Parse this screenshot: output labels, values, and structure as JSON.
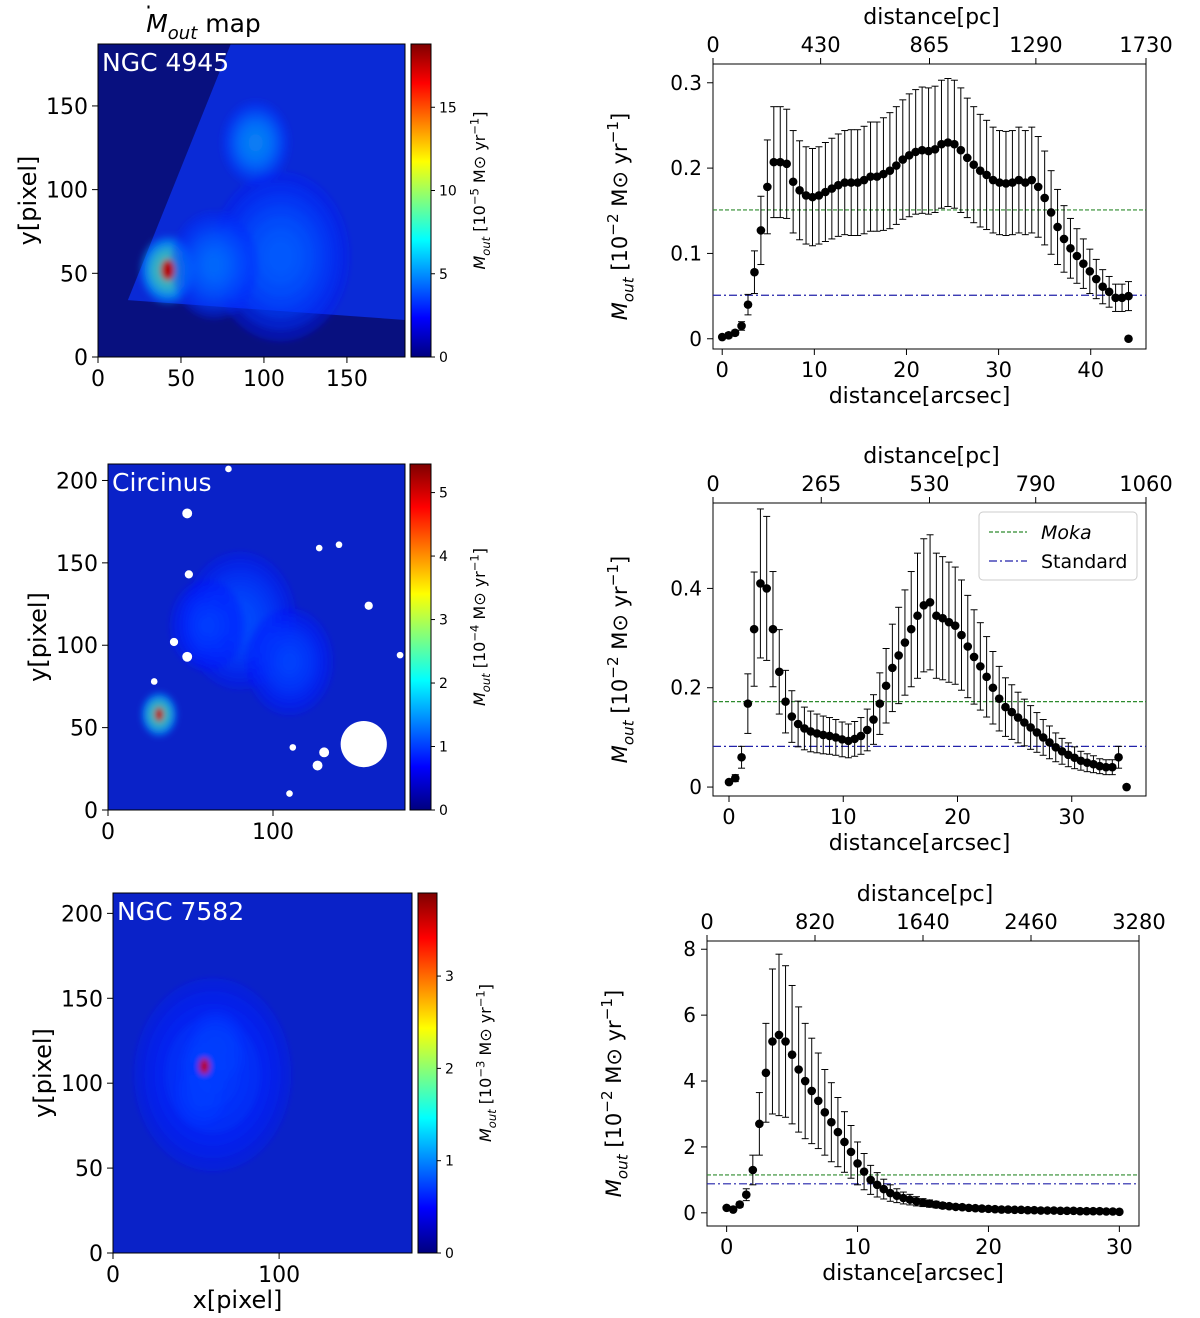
{
  "colors": {
    "map_background": "#0b1b9e",
    "profile_points": "#000000",
    "moka_line": "#2e8b2e",
    "standard_line": "#2222aa",
    "colormap": [
      "#00007f",
      "#0000ff",
      "#007fff",
      "#00ffff",
      "#7fff7f",
      "#ffff00",
      "#ff7f00",
      "#ff0000",
      "#7f0000"
    ]
  },
  "chart_data": [
    {
      "type": "heatmap",
      "panel": "map",
      "title_main": "M",
      "title_sub": "out",
      "title_rest": "map",
      "galaxy_label": "NGC 4945",
      "xlabel": "",
      "ylabel": "y[pixel]",
      "x_ticks": [
        "0",
        "50",
        "100",
        "150"
      ],
      "x_tick_values": [
        0,
        50,
        100,
        150
      ],
      "y_ticks": [
        "0",
        "50",
        "100",
        "150"
      ],
      "y_tick_values": [
        0,
        50,
        100,
        150
      ],
      "xlim": [
        0,
        185
      ],
      "ylim": [
        0,
        187
      ],
      "colorbar": {
        "label_prefix": "M",
        "label_sub": "out",
        "label_unit": "[10",
        "label_exp": "−5",
        "label_tail": "M⊙ yr",
        "label_tail_exp": "−1",
        "label_close": "]",
        "ticks": [
          "0",
          "5",
          "10",
          "15"
        ],
        "tick_values": [
          0,
          5,
          10,
          15
        ],
        "range": [
          0,
          18.8
        ]
      },
      "blobs": [
        {
          "x": 42,
          "y": 52,
          "amp": 1.0,
          "r": 9
        },
        {
          "x": 95,
          "y": 128,
          "amp": 0.45,
          "r": 11
        },
        {
          "x": 110,
          "y": 60,
          "amp": 0.3,
          "r": 22
        },
        {
          "x": 70,
          "y": 55,
          "amp": 0.35,
          "r": 14
        }
      ]
    },
    {
      "type": "scatter",
      "panel": "profile",
      "top_axis_label": "distance[pc]",
      "top_ticks": [
        "0",
        "430",
        "865",
        "1290",
        "1730"
      ],
      "top_tick_values": [
        0,
        430,
        865,
        1290,
        1730
      ],
      "top_lim": [
        0,
        1730
      ],
      "xlabel": "distance[arcsec]",
      "ylabel_prefix": "M",
      "ylabel_sub": "out",
      "ylabel_unit": "[10",
      "ylabel_exp": "−2",
      "ylabel_tail": "M⊙ yr",
      "ylabel_tail_exp": "−1",
      "ylabel_close": "]",
      "x_ticks": [
        "0",
        "10",
        "20",
        "30",
        "40"
      ],
      "x_tick_values": [
        0,
        10,
        20,
        30,
        40
      ],
      "y_ticks": [
        "0",
        "0.1",
        "0.2",
        "0.3"
      ],
      "y_tick_values": [
        0,
        0.1,
        0.2,
        0.3
      ],
      "xlim": [
        -1,
        46
      ],
      "ylim": [
        -0.012,
        0.322
      ],
      "moka_value": 0.151,
      "standard_value": 0.051,
      "x": [
        0,
        0.7,
        1.4,
        2.1,
        2.8,
        3.5,
        4.2,
        4.9,
        5.6,
        6.3,
        7,
        7.7,
        8.4,
        9.1,
        9.8,
        10.5,
        11.2,
        11.9,
        12.6,
        13.3,
        14,
        14.7,
        15.4,
        16.1,
        16.8,
        17.5,
        18.2,
        18.9,
        19.6,
        20.3,
        21,
        21.7,
        22.4,
        23.1,
        23.8,
        24.5,
        25.2,
        25.9,
        26.6,
        27.3,
        28,
        28.7,
        29.4,
        30.1,
        30.8,
        31.5,
        32.2,
        32.9,
        33.6,
        34.3,
        35,
        35.7,
        36.4,
        37.1,
        37.8,
        38.5,
        39.2,
        39.9,
        40.6,
        41.3,
        42,
        42.7,
        43.4,
        44.1
      ],
      "y": [
        0.002,
        0.004,
        0.007,
        0.015,
        0.04,
        0.078,
        0.127,
        0.178,
        0.207,
        0.207,
        0.205,
        0.184,
        0.174,
        0.168,
        0.166,
        0.168,
        0.172,
        0.176,
        0.18,
        0.183,
        0.183,
        0.183,
        0.186,
        0.19,
        0.19,
        0.193,
        0.197,
        0.203,
        0.21,
        0.215,
        0.219,
        0.221,
        0.22,
        0.222,
        0.228,
        0.23,
        0.228,
        0.221,
        0.212,
        0.204,
        0.197,
        0.192,
        0.186,
        0.183,
        0.182,
        0.183,
        0.186,
        0.183,
        0.186,
        0.178,
        0.165,
        0.148,
        0.131,
        0.117,
        0.106,
        0.097,
        0.088,
        0.079,
        0.07,
        0.061,
        0.055,
        0.048,
        0.048,
        0.05
      ],
      "err": [
        0.002,
        0.003,
        0.003,
        0.005,
        0.012,
        0.025,
        0.04,
        0.055,
        0.065,
        0.065,
        0.064,
        0.06,
        0.058,
        0.057,
        0.057,
        0.057,
        0.058,
        0.059,
        0.06,
        0.061,
        0.062,
        0.062,
        0.063,
        0.064,
        0.064,
        0.066,
        0.068,
        0.069,
        0.07,
        0.072,
        0.073,
        0.074,
        0.074,
        0.074,
        0.075,
        0.075,
        0.075,
        0.073,
        0.07,
        0.068,
        0.066,
        0.064,
        0.062,
        0.061,
        0.061,
        0.061,
        0.062,
        0.061,
        0.062,
        0.059,
        0.055,
        0.049,
        0.044,
        0.039,
        0.035,
        0.032,
        0.029,
        0.026,
        0.023,
        0.02,
        0.018,
        0.016,
        0.016,
        0.017
      ],
      "last_point": [
        44.1,
        0.0
      ]
    },
    {
      "type": "heatmap",
      "panel": "map",
      "galaxy_label": "Circinus",
      "xlabel": "",
      "ylabel": "y[pixel]",
      "x_ticks": [
        "0",
        "100"
      ],
      "x_tick_values": [
        0,
        100
      ],
      "y_ticks": [
        "0",
        "50",
        "100",
        "150",
        "200"
      ],
      "y_tick_values": [
        0,
        50,
        100,
        150,
        200
      ],
      "xlim": [
        0,
        180
      ],
      "ylim": [
        0,
        210
      ],
      "colorbar": {
        "label_prefix": "M",
        "label_sub": "out",
        "label_unit": "[10",
        "label_exp": "−4",
        "label_tail": "M⊙ yr",
        "label_tail_exp": "−1",
        "label_close": "]",
        "ticks": [
          "0",
          "1",
          "2",
          "3",
          "4",
          "5"
        ],
        "tick_values": [
          0,
          1,
          2,
          3,
          4,
          5
        ],
        "range": [
          0,
          5.45
        ]
      },
      "blobs": [
        {
          "x": 31,
          "y": 58,
          "amp": 1.0,
          "r": 6
        },
        {
          "x": 80,
          "y": 115,
          "amp": 0.25,
          "r": 18
        },
        {
          "x": 110,
          "y": 90,
          "amp": 0.22,
          "r": 14
        },
        {
          "x": 60,
          "y": 112,
          "amp": 0.2,
          "r": 12
        }
      ],
      "masks": [
        {
          "x": 155,
          "y": 40,
          "r": 14
        },
        {
          "x": 131,
          "y": 35,
          "r": 3
        },
        {
          "x": 127,
          "y": 27,
          "r": 3
        },
        {
          "x": 48,
          "y": 180,
          "r": 3
        },
        {
          "x": 40,
          "y": 102,
          "r": 2.5
        },
        {
          "x": 48,
          "y": 93,
          "r": 3
        },
        {
          "x": 49,
          "y": 143,
          "r": 2.5
        },
        {
          "x": 158,
          "y": 124,
          "r": 2.5
        },
        {
          "x": 140,
          "y": 161,
          "r": 2
        },
        {
          "x": 128,
          "y": 159,
          "r": 2
        },
        {
          "x": 112,
          "y": 38,
          "r": 2
        },
        {
          "x": 110,
          "y": 10,
          "r": 2
        },
        {
          "x": 177,
          "y": 94,
          "r": 2
        },
        {
          "x": 28,
          "y": 78,
          "r": 2
        },
        {
          "x": 73,
          "y": 207,
          "r": 2
        }
      ]
    },
    {
      "type": "scatter",
      "panel": "profile",
      "top_axis_label": "distance[pc]",
      "top_ticks": [
        "0",
        "265",
        "530",
        "790",
        "1060"
      ],
      "top_tick_values": [
        0,
        265,
        530,
        790,
        1060
      ],
      "top_lim": [
        0,
        1060
      ],
      "xlabel": "distance[arcsec]",
      "ylabel_prefix": "M",
      "ylabel_sub": "out",
      "ylabel_unit": "[10",
      "ylabel_exp": "−2",
      "ylabel_tail": "M⊙ yr",
      "ylabel_tail_exp": "−1",
      "ylabel_close": "]",
      "x_ticks": [
        "0",
        "10",
        "20",
        "30"
      ],
      "x_tick_values": [
        0,
        10,
        20,
        30
      ],
      "y_ticks": [
        "0",
        "0.2",
        "0.4"
      ],
      "y_tick_values": [
        0,
        0.2,
        0.4
      ],
      "xlim": [
        -1.4,
        36.5
      ],
      "ylim": [
        -0.018,
        0.572
      ],
      "moka_value": 0.172,
      "standard_value": 0.082,
      "legend": [
        {
          "label": "Moka",
          "style": "dashed",
          "italic": true
        },
        {
          "label": "Standard",
          "style": "dashdot",
          "italic": false
        }
      ],
      "x": [
        0,
        0.55,
        1.1,
        1.65,
        2.2,
        2.75,
        3.3,
        3.85,
        4.4,
        4.95,
        5.5,
        6.05,
        6.6,
        7.15,
        7.7,
        8.25,
        8.8,
        9.35,
        9.9,
        10.45,
        11,
        11.55,
        12.1,
        12.65,
        13.2,
        13.75,
        14.3,
        14.85,
        15.4,
        15.95,
        16.5,
        17.05,
        17.6,
        18.15,
        18.7,
        19.25,
        19.8,
        20.35,
        20.9,
        21.45,
        22,
        22.55,
        23.1,
        23.65,
        24.2,
        24.75,
        25.3,
        25.85,
        26.4,
        26.95,
        27.5,
        28.05,
        28.6,
        29.15,
        29.7,
        30.25,
        30.8,
        31.35,
        31.9,
        32.45,
        33,
        33.55,
        34.1
      ],
      "y": [
        0.01,
        0.018,
        0.06,
        0.168,
        0.318,
        0.41,
        0.4,
        0.318,
        0.232,
        0.172,
        0.142,
        0.127,
        0.118,
        0.112,
        0.108,
        0.105,
        0.103,
        0.1,
        0.096,
        0.093,
        0.097,
        0.103,
        0.115,
        0.136,
        0.168,
        0.204,
        0.24,
        0.265,
        0.291,
        0.318,
        0.345,
        0.366,
        0.372,
        0.345,
        0.34,
        0.332,
        0.325,
        0.306,
        0.283,
        0.262,
        0.243,
        0.222,
        0.2,
        0.178,
        0.161,
        0.151,
        0.14,
        0.13,
        0.12,
        0.11,
        0.1,
        0.09,
        0.08,
        0.072,
        0.065,
        0.059,
        0.053,
        0.049,
        0.046,
        0.042,
        0.04,
        0.04,
        0.06
      ],
      "err": [
        0.004,
        0.007,
        0.022,
        0.06,
        0.115,
        0.15,
        0.145,
        0.116,
        0.085,
        0.063,
        0.052,
        0.046,
        0.043,
        0.041,
        0.039,
        0.038,
        0.037,
        0.036,
        0.035,
        0.034,
        0.035,
        0.037,
        0.042,
        0.05,
        0.062,
        0.075,
        0.088,
        0.097,
        0.106,
        0.116,
        0.126,
        0.134,
        0.136,
        0.126,
        0.124,
        0.121,
        0.118,
        0.111,
        0.103,
        0.095,
        0.088,
        0.081,
        0.073,
        0.065,
        0.059,
        0.055,
        0.051,
        0.047,
        0.044,
        0.04,
        0.036,
        0.033,
        0.029,
        0.026,
        0.024,
        0.022,
        0.019,
        0.018,
        0.017,
        0.015,
        0.015,
        0.015,
        0.022
      ],
      "last_point": [
        34.8,
        0.0
      ]
    },
    {
      "type": "heatmap",
      "panel": "map",
      "galaxy_label": "NGC 7582",
      "xlabel": "x[pixel]",
      "ylabel": "y[pixel]",
      "x_ticks": [
        "0",
        "100"
      ],
      "x_tick_values": [
        0,
        100
      ],
      "y_ticks": [
        "0",
        "50",
        "100",
        "150",
        "200"
      ],
      "y_tick_values": [
        0,
        50,
        100,
        150,
        200
      ],
      "xlim": [
        0,
        180
      ],
      "ylim": [
        0,
        212
      ],
      "colorbar": {
        "label_prefix": "M",
        "label_sub": "out",
        "label_unit": "[10",
        "label_exp": "−3",
        "label_tail": "M⊙ yr",
        "label_tail_exp": "−1",
        "label_close": "]",
        "ticks": [
          "0",
          "1",
          "2",
          "3"
        ],
        "tick_values": [
          0,
          1,
          2,
          3
        ],
        "range": [
          0,
          3.9
        ]
      },
      "blobs": [
        {
          "x": 55,
          "y": 110,
          "amp": 1.0,
          "r": 7
        },
        {
          "x": 62,
          "y": 120,
          "amp": 0.55,
          "r": 10
        },
        {
          "x": 53,
          "y": 93,
          "amp": 0.4,
          "r": 9
        },
        {
          "x": 60,
          "y": 105,
          "amp": 0.2,
          "r": 25
        }
      ]
    },
    {
      "type": "scatter",
      "panel": "profile",
      "top_axis_label": "distance[pc]",
      "top_ticks": [
        "0",
        "820",
        "1640",
        "2460",
        "3280"
      ],
      "top_tick_values": [
        0,
        820,
        1640,
        2460,
        3280
      ],
      "top_lim": [
        0,
        3280
      ],
      "xlabel": "distance[arcsec]",
      "ylabel_prefix": "M",
      "ylabel_sub": "out",
      "ylabel_unit": "[10",
      "ylabel_exp": "−2",
      "ylabel_tail": "M⊙ yr",
      "ylabel_tail_exp": "−1",
      "ylabel_close": "]",
      "x_ticks": [
        "0",
        "10",
        "20",
        "30"
      ],
      "x_tick_values": [
        0,
        10,
        20,
        30
      ],
      "y_ticks": [
        "0",
        "2",
        "4",
        "6",
        "8"
      ],
      "y_tick_values": [
        0,
        2,
        4,
        6,
        8
      ],
      "xlim": [
        -1.5,
        31.5
      ],
      "ylim": [
        -0.4,
        8.25
      ],
      "moka_value": 1.15,
      "standard_value": 0.88,
      "x": [
        0,
        0.5,
        1,
        1.5,
        2,
        2.5,
        3,
        3.5,
        4,
        4.5,
        5,
        5.5,
        6,
        6.5,
        7,
        7.5,
        8,
        8.5,
        9,
        9.5,
        10,
        10.5,
        11,
        11.5,
        12,
        12.5,
        13,
        13.5,
        14,
        14.5,
        15,
        15.5,
        16,
        16.5,
        17,
        17.5,
        18,
        18.5,
        19,
        19.5,
        20,
        20.5,
        21,
        21.5,
        22,
        22.5,
        23,
        23.5,
        24,
        24.5,
        25,
        25.5,
        26,
        26.5,
        27,
        27.5,
        28,
        28.5,
        29,
        29.5,
        30
      ],
      "y": [
        0.15,
        0.1,
        0.25,
        0.55,
        1.3,
        2.7,
        4.25,
        5.2,
        5.4,
        5.2,
        4.8,
        4.35,
        4.0,
        3.7,
        3.4,
        3.05,
        2.75,
        2.45,
        2.15,
        1.85,
        1.5,
        1.25,
        1.0,
        0.85,
        0.72,
        0.6,
        0.52,
        0.45,
        0.4,
        0.35,
        0.31,
        0.28,
        0.25,
        0.22,
        0.2,
        0.18,
        0.17,
        0.15,
        0.14,
        0.13,
        0.12,
        0.11,
        0.1,
        0.1,
        0.09,
        0.09,
        0.08,
        0.08,
        0.07,
        0.07,
        0.07,
        0.06,
        0.06,
        0.06,
        0.05,
        0.05,
        0.05,
        0.05,
        0.04,
        0.04,
        0.03
      ],
      "err": [
        0.05,
        0.04,
        0.08,
        0.18,
        0.45,
        0.95,
        1.5,
        2.2,
        2.45,
        2.3,
        2.1,
        1.9,
        1.75,
        1.6,
        1.45,
        1.3,
        1.2,
        1.05,
        0.92,
        0.8,
        0.65,
        0.55,
        0.44,
        0.37,
        0.3,
        0.25,
        0.21,
        0.18,
        0.16,
        0.14,
        0.12,
        0.11,
        0.1,
        0.09,
        0.08,
        0.07,
        0.06,
        0.05,
        0.05,
        0.04,
        0.04,
        0.04,
        0.03,
        0.03,
        0.03,
        0.03,
        0.03,
        0.02,
        0.02,
        0.02,
        0.02,
        0.02,
        0.02,
        0.02,
        0.02,
        0.02,
        0.02,
        0.01,
        0.01,
        0.01,
        0.01
      ]
    }
  ]
}
